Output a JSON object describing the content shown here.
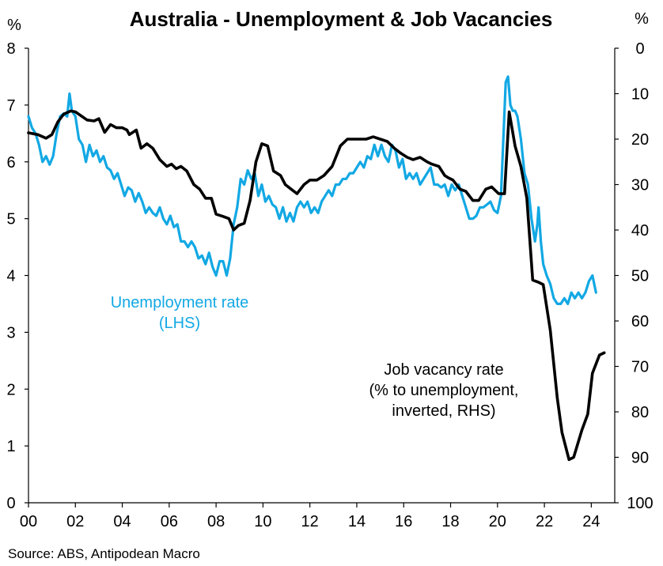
{
  "chart_data": {
    "type": "line",
    "title": "Australia - Unemployment & Job Vacancies",
    "left_axis": {
      "unit": "%",
      "ylim": [
        0,
        8
      ],
      "ticks": [
        "0",
        "1",
        "2",
        "3",
        "4",
        "5",
        "6",
        "7",
        "8"
      ]
    },
    "right_axis": {
      "unit": "%",
      "ylim": [
        0,
        100
      ],
      "inverted": true,
      "ticks": [
        "0",
        "10",
        "20",
        "30",
        "40",
        "50",
        "60",
        "70",
        "80",
        "90",
        "100"
      ]
    },
    "x_axis": {
      "xlim": [
        2000,
        2025
      ],
      "ticks": [
        "00",
        "02",
        "04",
        "06",
        "08",
        "10",
        "12",
        "14",
        "16",
        "18",
        "20",
        "22",
        "24"
      ]
    },
    "grid": false,
    "legend": "none",
    "annotations": {
      "unemployment": [
        "Unemployment rate",
        "(LHS)"
      ],
      "vacancy": [
        "Job vacancy rate",
        "(% to unemployment,",
        "inverted, RHS)"
      ]
    },
    "source": "Source: ABS, Antipodean Macro",
    "series": [
      {
        "name": "Unemployment rate (LHS)",
        "color": "#12a8e4",
        "axis": "left",
        "points": [
          [
            2000.0,
            6.8
          ],
          [
            2000.15,
            6.6
          ],
          [
            2000.3,
            6.5
          ],
          [
            2000.45,
            6.3
          ],
          [
            2000.6,
            6.0
          ],
          [
            2000.75,
            6.1
          ],
          [
            2000.9,
            5.95
          ],
          [
            2001.05,
            6.1
          ],
          [
            2001.2,
            6.5
          ],
          [
            2001.35,
            6.8
          ],
          [
            2001.5,
            6.85
          ],
          [
            2001.65,
            6.8
          ],
          [
            2001.75,
            7.2
          ],
          [
            2001.85,
            6.9
          ],
          [
            2002.0,
            6.8
          ],
          [
            2002.15,
            6.4
          ],
          [
            2002.3,
            6.3
          ],
          [
            2002.45,
            6.0
          ],
          [
            2002.6,
            6.3
          ],
          [
            2002.75,
            6.1
          ],
          [
            2002.9,
            6.2
          ],
          [
            2003.05,
            6.0
          ],
          [
            2003.2,
            6.1
          ],
          [
            2003.35,
            5.9
          ],
          [
            2003.5,
            5.85
          ],
          [
            2003.65,
            5.7
          ],
          [
            2003.8,
            5.8
          ],
          [
            2003.95,
            5.6
          ],
          [
            2004.1,
            5.4
          ],
          [
            2004.25,
            5.55
          ],
          [
            2004.4,
            5.5
          ],
          [
            2004.55,
            5.3
          ],
          [
            2004.7,
            5.45
          ],
          [
            2004.85,
            5.3
          ],
          [
            2005.0,
            5.1
          ],
          [
            2005.15,
            5.2
          ],
          [
            2005.3,
            5.1
          ],
          [
            2005.45,
            5.05
          ],
          [
            2005.6,
            5.2
          ],
          [
            2005.75,
            5.0
          ],
          [
            2005.9,
            4.9
          ],
          [
            2006.05,
            5.05
          ],
          [
            2006.2,
            4.85
          ],
          [
            2006.35,
            4.9
          ],
          [
            2006.5,
            4.6
          ],
          [
            2006.65,
            4.6
          ],
          [
            2006.8,
            4.5
          ],
          [
            2006.95,
            4.6
          ],
          [
            2007.1,
            4.5
          ],
          [
            2007.25,
            4.3
          ],
          [
            2007.4,
            4.35
          ],
          [
            2007.55,
            4.2
          ],
          [
            2007.7,
            4.4
          ],
          [
            2007.85,
            4.15
          ],
          [
            2008.0,
            4.0
          ],
          [
            2008.15,
            4.25
          ],
          [
            2008.3,
            4.25
          ],
          [
            2008.45,
            4.0
          ],
          [
            2008.6,
            4.3
          ],
          [
            2008.75,
            4.9
          ],
          [
            2008.9,
            5.2
          ],
          [
            2009.05,
            5.7
          ],
          [
            2009.2,
            5.6
          ],
          [
            2009.35,
            5.85
          ],
          [
            2009.5,
            5.7
          ],
          [
            2009.65,
            5.8
          ],
          [
            2009.8,
            5.4
          ],
          [
            2009.95,
            5.6
          ],
          [
            2010.1,
            5.3
          ],
          [
            2010.25,
            5.4
          ],
          [
            2010.4,
            5.25
          ],
          [
            2010.55,
            5.2
          ],
          [
            2010.7,
            5.0
          ],
          [
            2010.85,
            5.2
          ],
          [
            2011.0,
            4.95
          ],
          [
            2011.15,
            5.1
          ],
          [
            2011.3,
            4.95
          ],
          [
            2011.45,
            5.2
          ],
          [
            2011.6,
            5.3
          ],
          [
            2011.75,
            5.2
          ],
          [
            2011.9,
            5.3
          ],
          [
            2012.05,
            5.1
          ],
          [
            2012.2,
            5.2
          ],
          [
            2012.35,
            5.1
          ],
          [
            2012.5,
            5.3
          ],
          [
            2012.65,
            5.4
          ],
          [
            2012.8,
            5.5
          ],
          [
            2012.95,
            5.4
          ],
          [
            2013.1,
            5.6
          ],
          [
            2013.25,
            5.6
          ],
          [
            2013.4,
            5.7
          ],
          [
            2013.55,
            5.7
          ],
          [
            2013.7,
            5.8
          ],
          [
            2013.85,
            5.8
          ],
          [
            2014.0,
            5.9
          ],
          [
            2014.15,
            6.0
          ],
          [
            2014.3,
            5.9
          ],
          [
            2014.45,
            6.1
          ],
          [
            2014.6,
            6.05
          ],
          [
            2014.75,
            6.3
          ],
          [
            2014.9,
            6.1
          ],
          [
            2015.05,
            6.3
          ],
          [
            2015.2,
            6.1
          ],
          [
            2015.35,
            6.0
          ],
          [
            2015.5,
            6.3
          ],
          [
            2015.65,
            6.2
          ],
          [
            2015.8,
            5.9
          ],
          [
            2015.95,
            6.05
          ],
          [
            2016.1,
            5.7
          ],
          [
            2016.25,
            5.8
          ],
          [
            2016.4,
            5.7
          ],
          [
            2016.55,
            5.8
          ],
          [
            2016.7,
            5.6
          ],
          [
            2016.85,
            5.7
          ],
          [
            2017.0,
            5.8
          ],
          [
            2017.15,
            5.9
          ],
          [
            2017.3,
            5.6
          ],
          [
            2017.45,
            5.6
          ],
          [
            2017.6,
            5.55
          ],
          [
            2017.75,
            5.6
          ],
          [
            2017.9,
            5.4
          ],
          [
            2018.05,
            5.6
          ],
          [
            2018.2,
            5.5
          ],
          [
            2018.35,
            5.6
          ],
          [
            2018.5,
            5.4
          ],
          [
            2018.65,
            5.2
          ],
          [
            2018.8,
            5.0
          ],
          [
            2018.95,
            5.0
          ],
          [
            2019.1,
            5.05
          ],
          [
            2019.25,
            5.2
          ],
          [
            2019.4,
            5.2
          ],
          [
            2019.55,
            5.25
          ],
          [
            2019.7,
            5.3
          ],
          [
            2019.85,
            5.15
          ],
          [
            2020.0,
            5.1
          ],
          [
            2020.15,
            5.4
          ],
          [
            2020.25,
            6.4
          ],
          [
            2020.35,
            7.4
          ],
          [
            2020.45,
            7.5
          ],
          [
            2020.55,
            7.0
          ],
          [
            2020.65,
            6.9
          ],
          [
            2020.75,
            6.9
          ],
          [
            2020.85,
            6.8
          ],
          [
            2021.0,
            6.4
          ],
          [
            2021.15,
            5.8
          ],
          [
            2021.3,
            5.6
          ],
          [
            2021.45,
            5.0
          ],
          [
            2021.6,
            4.6
          ],
          [
            2021.7,
            4.9
          ],
          [
            2021.75,
            5.2
          ],
          [
            2021.85,
            4.6
          ],
          [
            2021.95,
            4.2
          ],
          [
            2022.1,
            4.0
          ],
          [
            2022.25,
            3.85
          ],
          [
            2022.4,
            3.6
          ],
          [
            2022.55,
            3.5
          ],
          [
            2022.7,
            3.5
          ],
          [
            2022.85,
            3.6
          ],
          [
            2023.0,
            3.5
          ],
          [
            2023.15,
            3.7
          ],
          [
            2023.3,
            3.6
          ],
          [
            2023.45,
            3.7
          ],
          [
            2023.6,
            3.6
          ],
          [
            2023.75,
            3.7
          ],
          [
            2023.9,
            3.9
          ],
          [
            2024.05,
            4.0
          ],
          [
            2024.2,
            3.7
          ]
        ]
      },
      {
        "name": "Job vacancy rate (% to unemployment, inverted, RHS)",
        "color": "#000000",
        "axis": "right",
        "points": [
          [
            2000.0,
            18.6
          ],
          [
            2000.4,
            19.0
          ],
          [
            2000.75,
            19.8
          ],
          [
            2001.0,
            19.0
          ],
          [
            2001.25,
            16.2
          ],
          [
            2001.5,
            14.5
          ],
          [
            2001.8,
            13.8
          ],
          [
            2002.0,
            14.0
          ],
          [
            2002.5,
            15.8
          ],
          [
            2002.8,
            16.0
          ],
          [
            2003.0,
            15.5
          ],
          [
            2003.25,
            18.5
          ],
          [
            2003.5,
            16.8
          ],
          [
            2003.75,
            17.5
          ],
          [
            2004.0,
            17.5
          ],
          [
            2004.2,
            18.0
          ],
          [
            2004.3,
            19.0
          ],
          [
            2004.6,
            18.0
          ],
          [
            2004.8,
            22.0
          ],
          [
            2005.05,
            21.0
          ],
          [
            2005.3,
            22.0
          ],
          [
            2005.6,
            24.5
          ],
          [
            2005.9,
            26.0
          ],
          [
            2006.1,
            25.5
          ],
          [
            2006.3,
            26.5
          ],
          [
            2006.5,
            26.0
          ],
          [
            2006.75,
            27.0
          ],
          [
            2007.05,
            30.0
          ],
          [
            2007.3,
            31.0
          ],
          [
            2007.55,
            33.0
          ],
          [
            2007.8,
            33.0
          ],
          [
            2008.0,
            36.5
          ],
          [
            2008.3,
            37.0
          ],
          [
            2008.55,
            37.5
          ],
          [
            2008.75,
            40.0
          ],
          [
            2008.95,
            39.0
          ],
          [
            2009.2,
            38.5
          ],
          [
            2009.45,
            33.5
          ],
          [
            2009.7,
            25.0
          ],
          [
            2009.95,
            21.0
          ],
          [
            2010.2,
            21.5
          ],
          [
            2010.45,
            27.0
          ],
          [
            2010.75,
            28.0
          ],
          [
            2010.95,
            30.0
          ],
          [
            2011.2,
            31.0
          ],
          [
            2011.45,
            32.0
          ],
          [
            2011.75,
            30.0
          ],
          [
            2012.0,
            29.0
          ],
          [
            2012.3,
            29.0
          ],
          [
            2012.6,
            28.0
          ],
          [
            2012.95,
            26.0
          ],
          [
            2013.3,
            21.5
          ],
          [
            2013.6,
            20.0
          ],
          [
            2013.8,
            20.0
          ],
          [
            2014.0,
            20.0
          ],
          [
            2014.4,
            20.0
          ],
          [
            2014.7,
            19.5
          ],
          [
            2015.0,
            20.0
          ],
          [
            2015.3,
            20.5
          ],
          [
            2015.6,
            22.0
          ],
          [
            2015.85,
            23.0
          ],
          [
            2016.15,
            24.0
          ],
          [
            2016.4,
            24.5
          ],
          [
            2016.7,
            24.0
          ],
          [
            2017.0,
            25.0
          ],
          [
            2017.2,
            25.5
          ],
          [
            2017.5,
            26.0
          ],
          [
            2017.75,
            28.0
          ],
          [
            2017.9,
            28.5
          ],
          [
            2018.1,
            29.0
          ],
          [
            2018.4,
            31.0
          ],
          [
            2018.65,
            31.5
          ],
          [
            2018.95,
            33.5
          ],
          [
            2019.2,
            33.5
          ],
          [
            2019.5,
            31.0
          ],
          [
            2019.75,
            30.5
          ],
          [
            2020.05,
            32.0
          ],
          [
            2020.3,
            32.0
          ],
          [
            2020.5,
            14.0
          ],
          [
            2020.75,
            21.5
          ],
          [
            2021.0,
            26.0
          ],
          [
            2021.25,
            33.0
          ],
          [
            2021.5,
            51.0
          ],
          [
            2021.75,
            51.5
          ],
          [
            2021.95,
            52.0
          ],
          [
            2022.25,
            62.0
          ],
          [
            2022.55,
            77.0
          ],
          [
            2022.75,
            84.5
          ],
          [
            2023.05,
            90.5
          ],
          [
            2023.25,
            90.0
          ],
          [
            2023.6,
            84.0
          ],
          [
            2023.85,
            80.5
          ],
          [
            2024.05,
            71.5
          ],
          [
            2024.35,
            67.5
          ],
          [
            2024.55,
            67.0
          ]
        ]
      }
    ]
  }
}
